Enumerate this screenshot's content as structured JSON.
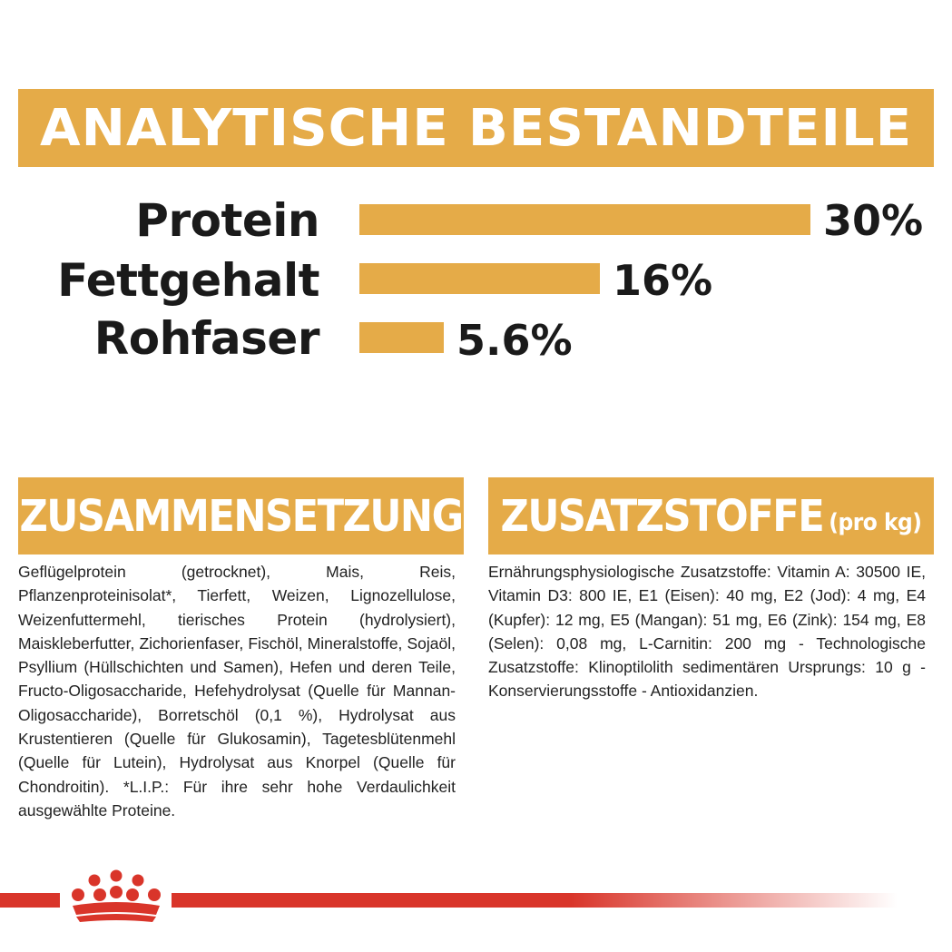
{
  "banner": {
    "title": "ANALYTISCHE BESTANDTEILE"
  },
  "nutrients": [
    {
      "label": "Protein",
      "value": "30%",
      "percent": 30
    },
    {
      "label": "Fettgehalt",
      "value": "16%",
      "percent": 16
    },
    {
      "label": "Rohfaser",
      "value": "5.6%",
      "percent": 5.6
    }
  ],
  "composition": {
    "title": "ZUSAMMENSETZUNG",
    "text": "Geflügelprotein (getrocknet), Mais, Reis, Pflanzenproteinisolat*, Tierfett, Weizen, Lignozellulose, Weizenfuttermehl, tierisches Protein (hydrolysiert), Maiskleberfutter, Zichorienfaser, Fischöl, Mineralstoffe, Sojaöl, Psyllium (Hüllschichten und Samen), Hefen und deren Teile, Fructo-Oligosaccharide, Hefehydrolysat (Quelle für Mannan-Oligosaccharide), Borretschöl (0,1 %), Hydrolysat aus Krustentieren (Quelle für Glukosamin), Tagetesblütenmehl (Quelle für Lutein), Hydrolysat aus Knorpel (Quelle für Chondroitin). *L.I.P.: Für ihre sehr hohe Verdaulichkeit ausgewählte Proteine."
  },
  "additives": {
    "title": "ZUSATZSTOFFE",
    "title_suffix": "(pro kg)",
    "text": "Ernährungsphysiologische Zusatzstoffe: Vitamin A: 30500 IE, Vitamin D3: 800 IE, E1 (Eisen): 40 mg, E2 (Jod): 4 mg, E4 (Kupfer): 12 mg, E5 (Mangan): 51 mg, E6 (Zink): 154 mg, E8 (Selen): 0,08 mg, L-Carnitin: 200 mg - Technologische Zusatzstoffe: Klinoptilolith sedimentären Ursprungs: 10 g - Konservierungsstoffe - Antioxidanzien."
  },
  "colors": {
    "accent": "#e5ab48",
    "brand_red": "#d9352a",
    "text": "#1a1a1a"
  },
  "logo": {
    "icon": "royal-canin-crown-logo"
  }
}
